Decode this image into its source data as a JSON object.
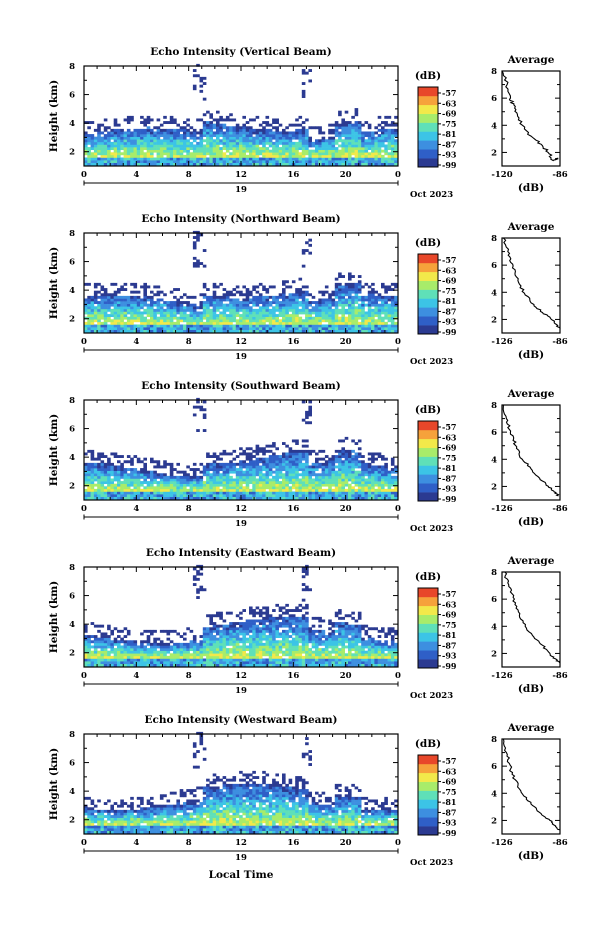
{
  "chart_data": [
    {
      "type": "heatmap",
      "title": "Echo Intensity (Vertical Beam)",
      "ylabel": "Height (km)",
      "x_ticks": [
        "0",
        "4",
        "8",
        "12",
        "16",
        "20",
        "0"
      ],
      "date_label": "19",
      "date_suffix": "Oct 2023",
      "xlim": [
        0,
        24
      ],
      "ylim": [
        1,
        8
      ],
      "y_ticks": [
        "2",
        "4",
        "6",
        "8"
      ],
      "colorbar": {
        "unit": "(dB)",
        "levels": [
          "-57",
          "-63",
          "-69",
          "-75",
          "-81",
          "-87",
          "-93",
          "-99"
        ]
      },
      "profile": {
        "title": "Average",
        "xlabel": "(dB)",
        "x_ticks": [
          "-120",
          "-86"
        ],
        "xlim": [
          -120,
          -86
        ],
        "y_ticks": [
          "2",
          "4",
          "6",
          "8"
        ],
        "points": [
          [
            -120,
            8.0
          ],
          [
            -117,
            7.0
          ],
          [
            -115,
            6.0
          ],
          [
            -113,
            5.5
          ],
          [
            -111,
            4.8
          ],
          [
            -108,
            4.0
          ],
          [
            -103,
            3.2
          ],
          [
            -97,
            2.6
          ],
          [
            -93,
            2.0
          ],
          [
            -90,
            1.4
          ],
          [
            -87,
            1.6
          ]
        ]
      }
    },
    {
      "type": "heatmap",
      "title": "Echo Intensity (Northward Beam)",
      "ylabel": "Height (km)",
      "x_ticks": [
        "0",
        "4",
        "8",
        "12",
        "16",
        "20",
        "0"
      ],
      "date_label": "19",
      "date_suffix": "Oct 2023",
      "xlim": [
        0,
        24
      ],
      "ylim": [
        1,
        8
      ],
      "y_ticks": [
        "2",
        "4",
        "6",
        "8"
      ],
      "colorbar": {
        "unit": "(dB)",
        "levels": [
          "-57",
          "-63",
          "-69",
          "-75",
          "-81",
          "-87",
          "-93",
          "-99"
        ]
      },
      "profile": {
        "title": "Average",
        "xlabel": "(dB)",
        "x_ticks": [
          "-126",
          "-86"
        ],
        "xlim": [
          -126,
          -86
        ],
        "y_ticks": [
          "2",
          "4",
          "6",
          "8"
        ],
        "points": [
          [
            -125,
            8.0
          ],
          [
            -122,
            7.0
          ],
          [
            -120,
            6.2
          ],
          [
            -117,
            5.4
          ],
          [
            -114,
            4.6
          ],
          [
            -110,
            3.8
          ],
          [
            -104,
            3.1
          ],
          [
            -98,
            2.5
          ],
          [
            -92,
            2.0
          ],
          [
            -88,
            1.6
          ],
          [
            -86,
            1.3
          ]
        ]
      }
    },
    {
      "type": "heatmap",
      "title": "Echo Intensity (Southward Beam)",
      "ylabel": "Height (km)",
      "x_ticks": [
        "0",
        "4",
        "8",
        "12",
        "16",
        "20",
        "0"
      ],
      "date_label": "19",
      "date_suffix": "Oct 2023",
      "xlim": [
        0,
        24
      ],
      "ylim": [
        1,
        8
      ],
      "y_ticks": [
        "2",
        "4",
        "6",
        "8"
      ],
      "colorbar": {
        "unit": "(dB)",
        "levels": [
          "-57",
          "-63",
          "-69",
          "-75",
          "-81",
          "-87",
          "-93",
          "-99"
        ]
      },
      "profile": {
        "title": "Average",
        "xlabel": "(dB)",
        "x_ticks": [
          "-126",
          "-86"
        ],
        "xlim": [
          -126,
          -86
        ],
        "y_ticks": [
          "2",
          "4",
          "6",
          "8"
        ],
        "points": [
          [
            -125,
            8.0
          ],
          [
            -123,
            7.0
          ],
          [
            -121,
            6.2
          ],
          [
            -118,
            5.5
          ],
          [
            -116,
            4.8
          ],
          [
            -112,
            4.0
          ],
          [
            -106,
            3.3
          ],
          [
            -100,
            2.6
          ],
          [
            -94,
            2.0
          ],
          [
            -90,
            1.6
          ],
          [
            -87,
            1.3
          ]
        ]
      }
    },
    {
      "type": "heatmap",
      "title": "Echo Intensity (Eastward Beam)",
      "ylabel": "Height (km)",
      "x_ticks": [
        "0",
        "4",
        "8",
        "12",
        "16",
        "20",
        "0"
      ],
      "date_label": "19",
      "date_suffix": "Oct 2023",
      "xlim": [
        0,
        24
      ],
      "ylim": [
        1,
        8
      ],
      "y_ticks": [
        "2",
        "4",
        "6",
        "8"
      ],
      "colorbar": {
        "unit": "(dB)",
        "levels": [
          "-57",
          "-63",
          "-69",
          "-75",
          "-81",
          "-87",
          "-93",
          "-99"
        ]
      },
      "profile": {
        "title": "Average",
        "xlabel": "(dB)",
        "x_ticks": [
          "-126",
          "-86"
        ],
        "xlim": [
          -126,
          -86
        ],
        "y_ticks": [
          "2",
          "4",
          "6",
          "8"
        ],
        "points": [
          [
            -124,
            8.0
          ],
          [
            -122,
            7.2
          ],
          [
            -119,
            6.4
          ],
          [
            -117,
            5.6
          ],
          [
            -114,
            4.8
          ],
          [
            -110,
            4.0
          ],
          [
            -104,
            3.2
          ],
          [
            -98,
            2.6
          ],
          [
            -93,
            2.0
          ],
          [
            -89,
            1.6
          ],
          [
            -86,
            1.3
          ]
        ]
      }
    },
    {
      "type": "heatmap",
      "title": "Echo Intensity (Westward Beam)",
      "ylabel": "Height (km)",
      "x_ticks": [
        "0",
        "4",
        "8",
        "12",
        "16",
        "20",
        "0"
      ],
      "date_label": "19",
      "date_suffix": "Oct 2023",
      "xlim": [
        0,
        24
      ],
      "ylim": [
        1,
        8
      ],
      "y_ticks": [
        "2",
        "4",
        "6",
        "8"
      ],
      "xlabel": "Local Time",
      "colorbar": {
        "unit": "(dB)",
        "levels": [
          "-57",
          "-63",
          "-69",
          "-75",
          "-81",
          "-87",
          "-93",
          "-99"
        ]
      },
      "profile": {
        "title": "Average",
        "xlabel": "(dB)",
        "x_ticks": [
          "-126",
          "-86"
        ],
        "xlim": [
          -126,
          -86
        ],
        "y_ticks": [
          "2",
          "4",
          "6",
          "8"
        ],
        "points": [
          [
            -125,
            8.0
          ],
          [
            -123,
            7.0
          ],
          [
            -121,
            6.2
          ],
          [
            -119,
            5.4
          ],
          [
            -115,
            4.6
          ],
          [
            -111,
            3.8
          ],
          [
            -105,
            3.1
          ],
          [
            -99,
            2.5
          ],
          [
            -93,
            2.0
          ],
          [
            -89,
            1.6
          ],
          [
            -86,
            1.3
          ]
        ]
      }
    }
  ],
  "colors": {
    "colormap": [
      "#2b3a91",
      "#2f5fc7",
      "#3d8fe0",
      "#3cc4e6",
      "#5fe0b8",
      "#a8ec6a",
      "#f2e94a",
      "#f6a23b",
      "#e8472a"
    ]
  }
}
